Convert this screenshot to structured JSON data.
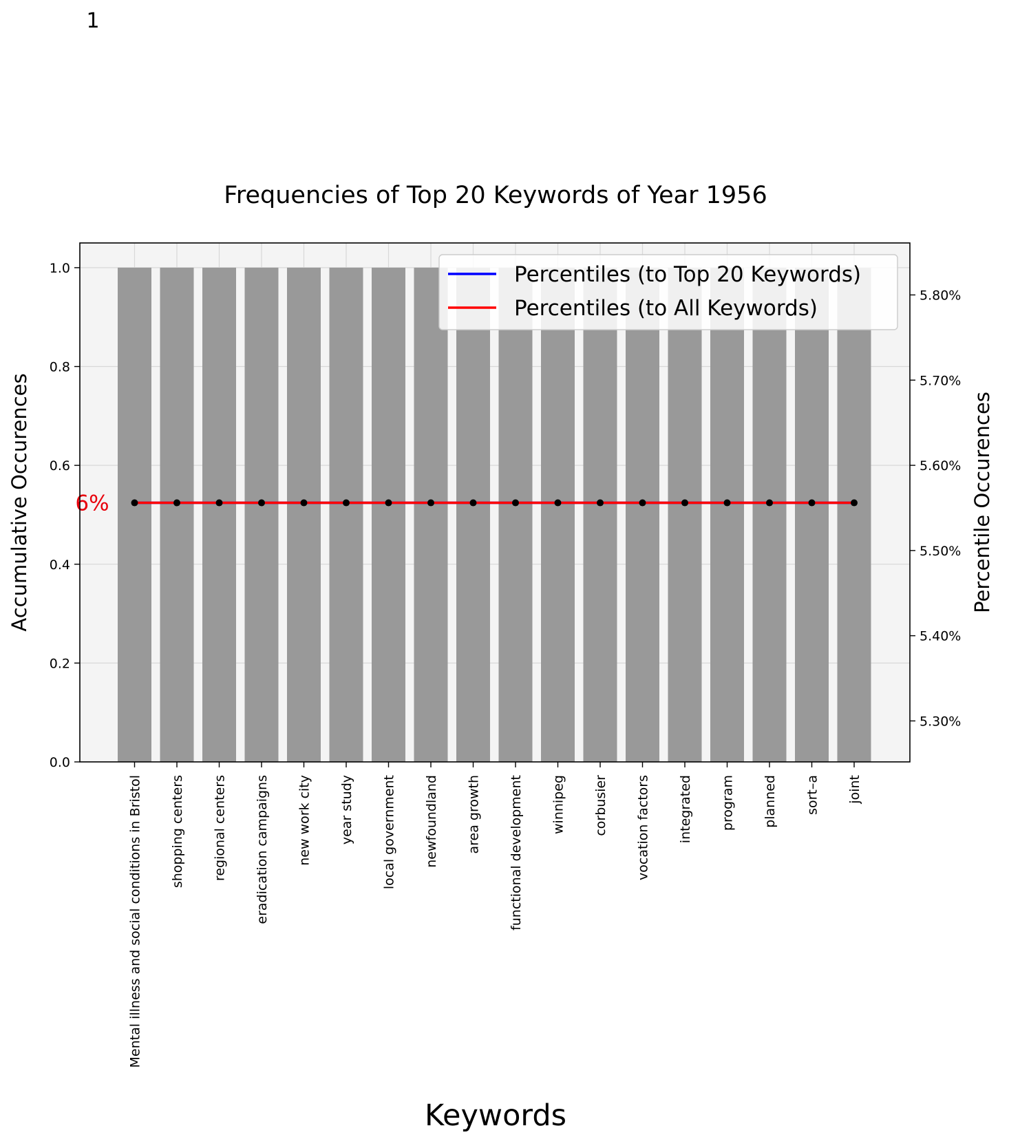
{
  "page_number": "1",
  "colors": {
    "bar": "#999999",
    "plot_bg": "#f4f4f4",
    "grid": "#d8d8d8",
    "line_top20": "#0000ff",
    "line_all": "#ff0000",
    "marker": "#000000",
    "annotation": "#e8000b"
  },
  "chart_data": {
    "type": "bar",
    "title": "Frequencies of Top 20 Keywords of Year 1956",
    "xlabel": "Keywords",
    "ylabel": "Accumulative Occurences",
    "y2label": "Percentile Occurences",
    "ylim": [
      0,
      1.05
    ],
    "y2lim": [
      5.2519,
      5.861
    ],
    "yticks": [
      "0.0",
      "0.2",
      "0.4",
      "0.6",
      "0.8",
      "1.0"
    ],
    "y2ticks": [
      "5.30%",
      "5.40%",
      "5.50%",
      "5.60%",
      "5.70%",
      "5.80%"
    ],
    "grid": true,
    "legend_position": "top-right",
    "categories": [
      "Mental illness and social conditions in Bristol",
      "shopping centers",
      "regional centers",
      "eradication campaigns",
      "new work city",
      "year study",
      "local government",
      "newfoundland",
      "area growth",
      "functional development",
      "winnipeg",
      "corbusier",
      "vocation factors",
      "integrated",
      "program",
      "planned",
      "sort–a",
      "joint"
    ],
    "values": [
      1,
      1,
      1,
      1,
      1,
      1,
      1,
      1,
      1,
      1,
      1,
      1,
      1,
      1,
      1,
      1,
      1,
      1
    ],
    "series": [
      {
        "name": "Percentiles (to Top 20 Keywords)",
        "axis": "right",
        "values": [
          5.556,
          5.556,
          5.556,
          5.556,
          5.556,
          5.556,
          5.556,
          5.556,
          5.556,
          5.556,
          5.556,
          5.556,
          5.556,
          5.556,
          5.556,
          5.556,
          5.556,
          5.556
        ]
      },
      {
        "name": "Percentiles (to All Keywords)",
        "axis": "right",
        "values": [
          5.556,
          5.556,
          5.556,
          5.556,
          5.556,
          5.556,
          5.556,
          5.556,
          5.556,
          5.556,
          5.556,
          5.556,
          5.556,
          5.556,
          5.556,
          5.556,
          5.556,
          5.556
        ]
      }
    ],
    "annotations": [
      {
        "text": "6%",
        "y": 5.556,
        "position": "left of first point"
      }
    ]
  }
}
